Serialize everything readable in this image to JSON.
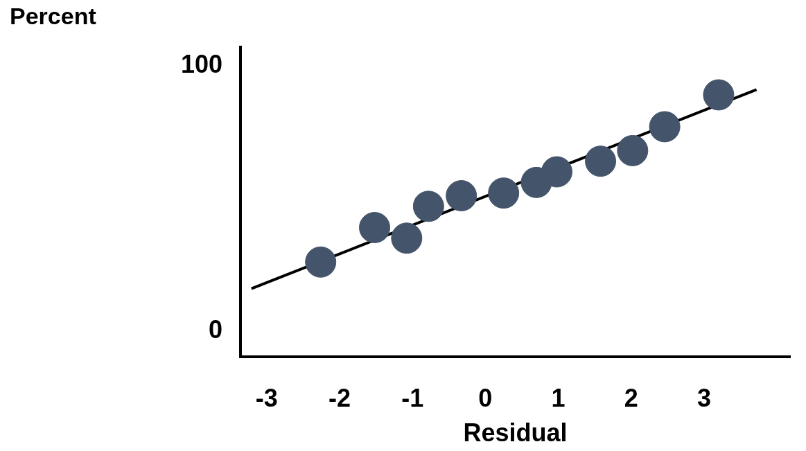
{
  "chart_data": {
    "type": "scatter",
    "ylabel": "Percent",
    "xlabel": "Residual",
    "xlim": [
      -3.36,
      4.18
    ],
    "ylim": [
      -9.7,
      107
    ],
    "xticks": [
      -3,
      -2,
      -1,
      0,
      1,
      2,
      3
    ],
    "yticks": [
      0,
      100
    ],
    "grid": false,
    "legend": false,
    "marker": "circle",
    "series": [
      {
        "color": "#44546a",
        "x": [
          -2.26,
          -1.52,
          -1.08,
          -0.78,
          -0.33,
          0.25,
          0.7,
          0.98,
          1.58,
          2.02,
          2.46,
          3.2
        ],
        "values": [
          26,
          39,
          35,
          47,
          51,
          52,
          56,
          60,
          64,
          68,
          77,
          89
        ]
      },
      {
        "type": "line",
        "color": "#000000",
        "line_style": "solid",
        "marker": "none",
        "x": [
          -3.21,
          3.72
        ],
        "values": [
          16,
          91
        ]
      }
    ]
  }
}
